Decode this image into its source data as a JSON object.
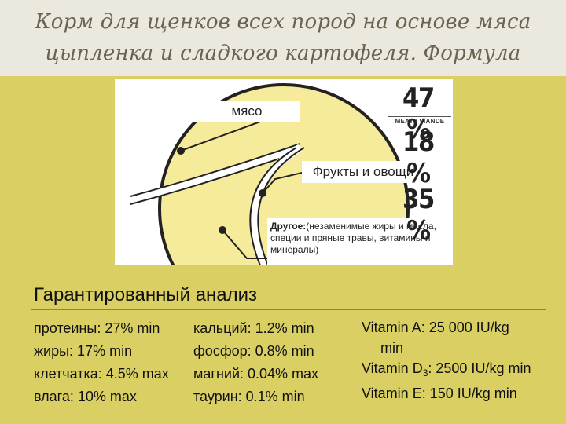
{
  "title": "Корм для щенков всех пород на основе мяса цыпленка и сладкого картофеля. Формула роста",
  "chart_data": {
    "type": "pie",
    "categories": [
      "мясо",
      "Фрукты и овощи",
      "Другое"
    ],
    "values": [
      47,
      18,
      35
    ],
    "value_labels": [
      "47 %",
      "18 %",
      "35 %"
    ],
    "meat_caption": "MEAT / VIANDE",
    "colors": [
      "#f5eb9b",
      "#f5eb9b",
      "#f5eb9b"
    ],
    "other_label_bold": "Другое:",
    "other_label_rest": "(незаменимые жиры и масла, специи и пряные травы, витамины и минералы)"
  },
  "analysis": {
    "heading": "Гарантированный анализ",
    "col1": [
      "протеины: 27% min",
      "жиры: 17% min",
      "клетчатка: 4.5% max",
      "влага: 10% max"
    ],
    "col2": [
      "кальций: 1.2% min",
      "фосфор: 0.8% min",
      "магний: 0.04% max",
      "таурин: 0.1% min"
    ],
    "vitamin_a_1": "Vitamin A: 25 000 IU/kg",
    "vitamin_a_2": "min",
    "vitamin_d_prefix": "Vitamin D",
    "vitamin_d_sub": "3",
    "vitamin_d_suffix": ": 2500 IU/kg min",
    "vitamin_e": "Vitamin E: 150 IU/kg min"
  }
}
